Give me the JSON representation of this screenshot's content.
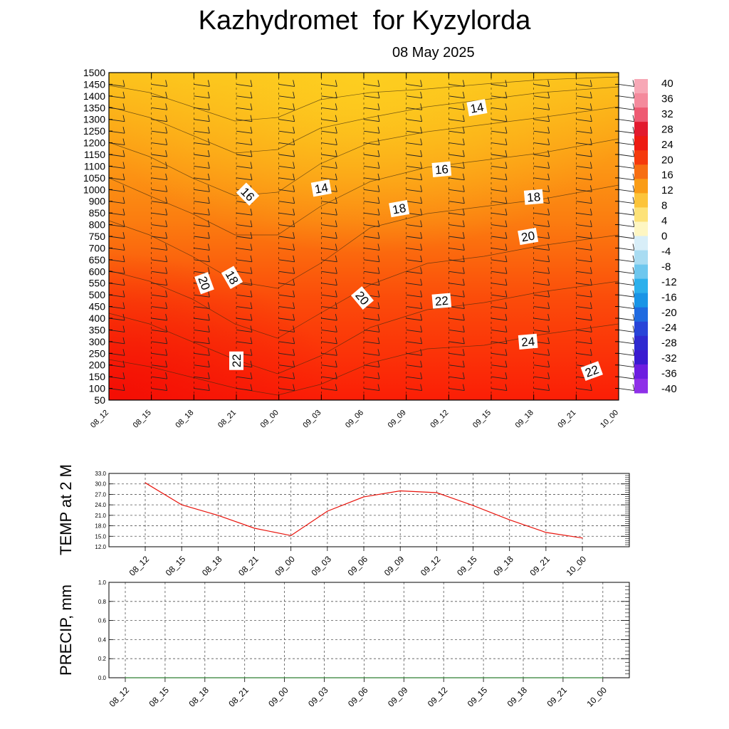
{
  "title": "Kazhydromet  for Kyzylorda",
  "subtitle": "08 May 2025",
  "colors": {
    "temp_line": "#e8140c",
    "precip_line": "#2e7d32",
    "grid": "#555555",
    "cross_section_warm": "#fb2a08",
    "cross_section_cool": "#fcbf1b"
  },
  "chart_data": [
    {
      "type": "heatmap",
      "name": "cross-section",
      "x": [
        "08_12",
        "08_15",
        "08_18",
        "08_21",
        "09_00",
        "09_03",
        "09_06",
        "09_09",
        "09_12",
        "09_15",
        "09_18",
        "09_21",
        "10_00"
      ],
      "y_ticks": [
        50,
        100,
        150,
        200,
        250,
        300,
        350,
        400,
        450,
        500,
        550,
        600,
        650,
        700,
        750,
        800,
        850,
        900,
        1000,
        1050,
        1100,
        1150,
        1200,
        1250,
        1300,
        1350,
        1400,
        1450,
        1500
      ],
      "ylim": [
        50,
        1500
      ],
      "colorbar": {
        "labels": [
          "40",
          "36",
          "32",
          "28",
          "24",
          "20",
          "16",
          "12",
          "8",
          "4",
          "0",
          "-4",
          "-8",
          "-12",
          "-16",
          "-20",
          "-24",
          "-28",
          "-32",
          "-36",
          "-40"
        ],
        "range": [
          -40,
          40
        ]
      },
      "contour_labels": [
        {
          "text": "14",
          "x": "09_03",
          "level": 1000
        },
        {
          "text": "14",
          "x": "09_15",
          "level": 1350
        },
        {
          "text": "16",
          "x": "08_21",
          "level": 900
        },
        {
          "text": "16",
          "x": "09_12",
          "level": 1050
        },
        {
          "text": "18",
          "x": "09_09",
          "level": 850
        },
        {
          "text": "18",
          "x": "09_18",
          "level": 950
        },
        {
          "text": "18",
          "x": "08_21",
          "level": 550
        },
        {
          "text": "20",
          "x": "08_21",
          "level": 550
        },
        {
          "text": "20",
          "x": "09_06",
          "level": 450
        },
        {
          "text": "20",
          "x": "09_18",
          "level": 750
        },
        {
          "text": "22",
          "x": "09_12",
          "level": 450
        },
        {
          "text": "22",
          "x": "08_21",
          "level": 200
        },
        {
          "text": "22",
          "x": "09_21",
          "level": 150
        },
        {
          "text": "24",
          "x": "09_18",
          "level": 300
        }
      ]
    },
    {
      "type": "line",
      "name": "temperature",
      "ylabel": "TEMP at 2 M",
      "x": [
        "08_12",
        "08_15",
        "08_18",
        "08_21",
        "09_00",
        "09_03",
        "09_06",
        "09_09",
        "09_12",
        "09_15",
        "09_18",
        "09_21",
        "10_00"
      ],
      "series": [
        {
          "values": [
            30.3,
            24.0,
            21.0,
            17.3,
            15.2,
            22.2,
            26.3,
            28.0,
            27.5,
            23.8,
            19.7,
            16.1,
            14.5
          ]
        }
      ],
      "ylim": [
        12,
        33
      ],
      "y_ticks": [
        "33.0",
        "30.0",
        "27.0",
        "24.0",
        "21.0",
        "18.0",
        "15.0",
        "12.0"
      ]
    },
    {
      "type": "line",
      "name": "precipitation",
      "ylabel": "PRECIP, mm",
      "x": [
        "08_12",
        "08_15",
        "08_18",
        "08_21",
        "09_00",
        "09_03",
        "09_06",
        "09_09",
        "09_12",
        "09_15",
        "09_18",
        "09_21",
        "10_00"
      ],
      "series": [
        {
          "values": [
            0,
            0,
            0,
            0,
            0,
            0,
            0,
            0,
            0,
            0,
            0,
            0,
            0
          ]
        }
      ],
      "ylim": [
        0,
        1
      ],
      "y_ticks": [
        "1.0",
        "0.8",
        "0.6",
        "0.4",
        "0.2",
        "0.0"
      ]
    }
  ]
}
